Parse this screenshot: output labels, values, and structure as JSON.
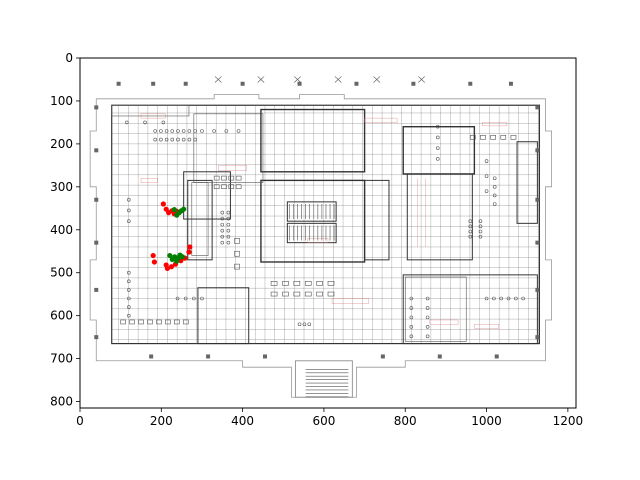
{
  "chart_data": {
    "type": "scatter",
    "title": "",
    "xlabel": "",
    "ylabel": "",
    "xlim": [
      0,
      1220
    ],
    "ylim": [
      815,
      0
    ],
    "y_inverted": true,
    "x_ticks": [
      0,
      200,
      400,
      600,
      800,
      1000,
      1200
    ],
    "y_ticks": [
      0,
      100,
      200,
      300,
      400,
      500,
      600,
      700,
      800
    ],
    "background_image": "floor-plan",
    "grid": false,
    "legend": "none",
    "series": [
      {
        "color": "#ff0000",
        "points": [
          [
            205,
            340
          ],
          [
            212,
            352
          ],
          [
            218,
            360
          ],
          [
            226,
            356
          ],
          [
            238,
            357
          ],
          [
            232,
            363
          ],
          [
            180,
            460
          ],
          [
            183,
            475
          ],
          [
            212,
            482
          ],
          [
            215,
            490
          ],
          [
            225,
            486
          ],
          [
            235,
            480
          ],
          [
            248,
            472
          ],
          [
            258,
            466
          ],
          [
            268,
            452
          ],
          [
            270,
            440
          ]
        ]
      },
      {
        "color": "#008000",
        "points": [
          [
            232,
            353
          ],
          [
            238,
            366
          ],
          [
            244,
            360
          ],
          [
            249,
            356
          ],
          [
            255,
            352
          ],
          [
            221,
            460
          ],
          [
            227,
            469
          ],
          [
            233,
            463
          ],
          [
            238,
            473
          ],
          [
            241,
            466
          ],
          [
            246,
            459
          ],
          [
            252,
            463
          ]
        ]
      }
    ]
  }
}
